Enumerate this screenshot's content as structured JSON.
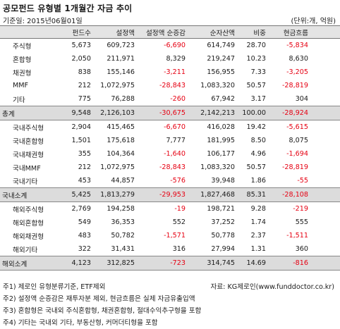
{
  "title": "공모펀드 유형별 1개월간 자금 추이",
  "date_label": "기준일: 2015년06월01일",
  "unit_label": "(단위:개, 억원)",
  "columns": [
    "",
    "펀드수",
    "설정액",
    "설정액 순증감",
    "순자산액",
    "비중",
    "현금흐름"
  ],
  "rows": [
    {
      "label": "주식형",
      "funds": "5,673",
      "setup": "609,723",
      "setup_change": "-6,690",
      "net_assets": "614,749",
      "share": "28.70",
      "cashflow": "-5,834",
      "total": false
    },
    {
      "label": "혼합형",
      "funds": "2,050",
      "setup": "211,971",
      "setup_change": "8,329",
      "net_assets": "219,247",
      "share": "10.23",
      "cashflow": "8,630",
      "total": false
    },
    {
      "label": "채권형",
      "funds": "838",
      "setup": "155,146",
      "setup_change": "-3,211",
      "net_assets": "156,955",
      "share": "7.33",
      "cashflow": "-3,205",
      "total": false
    },
    {
      "label": "MMF",
      "funds": "212",
      "setup": "1,072,975",
      "setup_change": "-28,843",
      "net_assets": "1,083,320",
      "share": "50.57",
      "cashflow": "-28,819",
      "total": false
    },
    {
      "label": "기타",
      "funds": "775",
      "setup": "76,288",
      "setup_change": "-260",
      "net_assets": "67,942",
      "share": "3.17",
      "cashflow": "304",
      "total": false
    },
    {
      "label": "총계",
      "funds": "9,548",
      "setup": "2,126,103",
      "setup_change": "-30,675",
      "net_assets": "2,142,213",
      "share": "100.00",
      "cashflow": "-28,924",
      "total": true
    },
    {
      "label": "국내주식형",
      "funds": "2,904",
      "setup": "415,465",
      "setup_change": "-6,670",
      "net_assets": "416,028",
      "share": "19.42",
      "cashflow": "-5,615",
      "total": false
    },
    {
      "label": "국내혼합형",
      "funds": "1,501",
      "setup": "175,618",
      "setup_change": "7,777",
      "net_assets": "181,995",
      "share": "8.50",
      "cashflow": "8,075",
      "total": false
    },
    {
      "label": "국내채권형",
      "funds": "355",
      "setup": "104,364",
      "setup_change": "-1,640",
      "net_assets": "106,177",
      "share": "4.96",
      "cashflow": "-1,694",
      "total": false
    },
    {
      "label": "국내MMF",
      "funds": "212",
      "setup": "1,072,975",
      "setup_change": "-28,843",
      "net_assets": "1,083,320",
      "share": "50.57",
      "cashflow": "-28,819",
      "total": false
    },
    {
      "label": "국내기타",
      "funds": "453",
      "setup": "44,857",
      "setup_change": "-576",
      "net_assets": "39,948",
      "share": "1.86",
      "cashflow": "-55",
      "total": false
    },
    {
      "label": "국내소계",
      "funds": "5,425",
      "setup": "1,813,279",
      "setup_change": "-29,953",
      "net_assets": "1,827,468",
      "share": "85.31",
      "cashflow": "-28,108",
      "total": true
    },
    {
      "label": "해외주식형",
      "funds": "2,769",
      "setup": "194,258",
      "setup_change": "-19",
      "net_assets": "198,721",
      "share": "9.28",
      "cashflow": "-219",
      "total": false
    },
    {
      "label": "해외혼합형",
      "funds": "549",
      "setup": "36,353",
      "setup_change": "552",
      "net_assets": "37,252",
      "share": "1.74",
      "cashflow": "555",
      "total": false
    },
    {
      "label": "해외채권형",
      "funds": "483",
      "setup": "50,782",
      "setup_change": "-1,571",
      "net_assets": "50,778",
      "share": "2.37",
      "cashflow": "-1,511",
      "total": false
    },
    {
      "label": "해외기타",
      "funds": "322",
      "setup": "31,431",
      "setup_change": "316",
      "net_assets": "27,994",
      "share": "1.31",
      "cashflow": "360",
      "total": false
    },
    {
      "label": "해외소계",
      "funds": "4,123",
      "setup": "312,825",
      "setup_change": "-723",
      "net_assets": "314,745",
      "share": "14.69",
      "cashflow": "-816",
      "total": true
    }
  ],
  "notes": [
    "주1) 제로인 유형분류기준, ETF제외",
    "주2) 설정액 순증감은 재투자분 제외, 현금흐름은 실제 자금유출입액",
    "주3) 혼합형은 국내외 주식혼합형, 채권혼합형, 절대수익추구형을 포함",
    "주4) 기타는 국내외 기타, 부동산형, 커머더티형을 포함"
  ],
  "source": "자료: KG제로인(www.funddoctor.co.kr)",
  "colors": {
    "negative": "#e60012",
    "header_bg": "#e4e4e4",
    "total_bg": "#dcdcdc"
  }
}
